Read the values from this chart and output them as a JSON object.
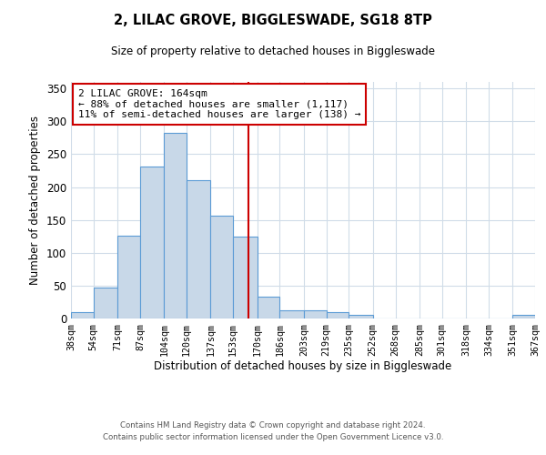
{
  "title": "2, LILAC GROVE, BIGGLESWADE, SG18 8TP",
  "subtitle": "Size of property relative to detached houses in Biggleswade",
  "xlabel": "Distribution of detached houses by size in Biggleswade",
  "ylabel": "Number of detached properties",
  "bin_edges": [
    38,
    54,
    71,
    87,
    104,
    120,
    137,
    153,
    170,
    186,
    203,
    219,
    235,
    252,
    268,
    285,
    301,
    318,
    334,
    351,
    367
  ],
  "bar_heights": [
    10,
    47,
    126,
    231,
    283,
    210,
    157,
    125,
    33,
    12,
    12,
    10,
    5,
    0,
    0,
    0,
    0,
    0,
    0,
    5
  ],
  "bar_color": "#c8d8e8",
  "bar_edgecolor": "#5b9bd5",
  "vline_x": 164,
  "vline_color": "#cc0000",
  "annotation_title": "2 LILAC GROVE: 164sqm",
  "annotation_line1": "← 88% of detached houses are smaller (1,117)",
  "annotation_line2": "11% of semi-detached houses are larger (138) →",
  "annotation_box_color": "#ffffff",
  "annotation_box_edgecolor": "#cc0000",
  "ylim": [
    0,
    360
  ],
  "yticks": [
    0,
    50,
    100,
    150,
    200,
    250,
    300,
    350
  ],
  "tick_labels": [
    "38sqm",
    "54sqm",
    "71sqm",
    "87sqm",
    "104sqm",
    "120sqm",
    "137sqm",
    "153sqm",
    "170sqm",
    "186sqm",
    "203sqm",
    "219sqm",
    "235sqm",
    "252sqm",
    "268sqm",
    "285sqm",
    "301sqm",
    "318sqm",
    "334sqm",
    "351sqm",
    "367sqm"
  ],
  "footer_line1": "Contains HM Land Registry data © Crown copyright and database right 2024.",
  "footer_line2": "Contains public sector information licensed under the Open Government Licence v3.0.",
  "background_color": "#ffffff",
  "grid_color": "#d0dce8"
}
